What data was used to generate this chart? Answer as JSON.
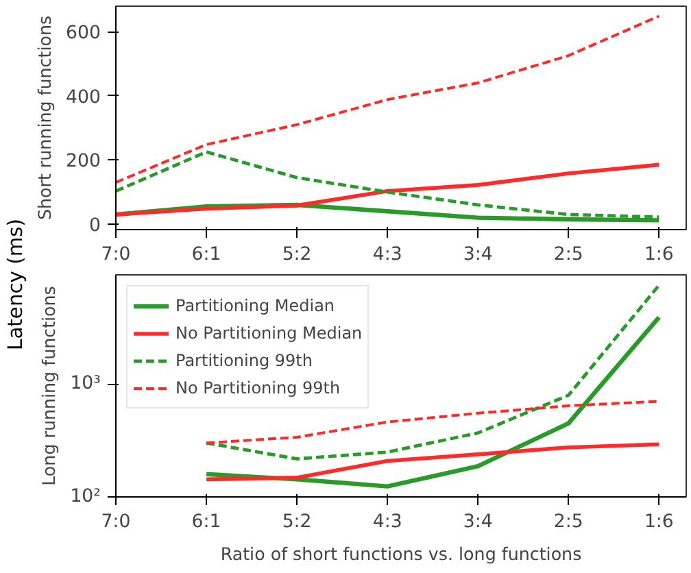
{
  "chart_data": [
    {
      "type": "line",
      "ylabel": "Short running functions",
      "annotations": [
        "Latency (ms)"
      ],
      "categories": [
        "7:0",
        "6:1",
        "5:2",
        "4:3",
        "3:4",
        "2:5",
        "1:6"
      ],
      "ylim": [
        -17,
        679
      ],
      "yticks": [
        0,
        200,
        400,
        600
      ],
      "grid": false,
      "legend": false,
      "series": [
        {
          "color": "#2a9a2a",
          "line_style": "solid",
          "values": [
            30,
            55,
            60,
            40,
            20,
            15,
            12
          ]
        },
        {
          "color": "#ff2a2a",
          "line_style": "solid",
          "values": [
            30,
            48,
            58,
            103,
            122,
            158,
            185
          ]
        },
        {
          "color": "#2a9a2a",
          "line_style": "dashed",
          "values": [
            103,
            225,
            145,
            100,
            60,
            30,
            22
          ]
        },
        {
          "color": "#ff2a2a",
          "line_style": "dashed",
          "values": [
            130,
            248,
            310,
            388,
            440,
            525,
            648
          ]
        }
      ]
    },
    {
      "type": "line",
      "ylabel": "Long running functions",
      "xlabel": "Ratio of short functions vs. long functions",
      "categories": [
        "7:0",
        "6:1",
        "5:2",
        "4:3",
        "3:4",
        "2:5",
        "1:6"
      ],
      "log": "y",
      "ylim": [
        100,
        9200
      ],
      "yticks": [
        {
          "value": 100,
          "label": "10²"
        },
        {
          "value": 1000,
          "label": "10³"
        }
      ],
      "grid": false,
      "legend": "top left",
      "series": [
        {
          "name": "Partitioning Median",
          "color": "#2a9a2a",
          "line_style": "solid",
          "values": [
            null,
            159,
            143,
            124,
            187,
            448,
            3880
          ]
        },
        {
          "name": "No Partitioning Median",
          "color": "#ff2a2a",
          "line_style": "solid",
          "values": [
            null,
            143,
            148,
            208,
            238,
            274,
            292
          ]
        },
        {
          "name": "Partitioning 99th",
          "color": "#2a9a2a",
          "line_style": "dashed",
          "values": [
            null,
            300,
            217,
            249,
            368,
            793,
            7450
          ]
        },
        {
          "name": "No Partitioning 99th",
          "color": "#ff2a2a",
          "line_style": "dashed",
          "values": [
            null,
            300,
            337,
            460,
            550,
            640,
            700
          ]
        }
      ]
    }
  ]
}
